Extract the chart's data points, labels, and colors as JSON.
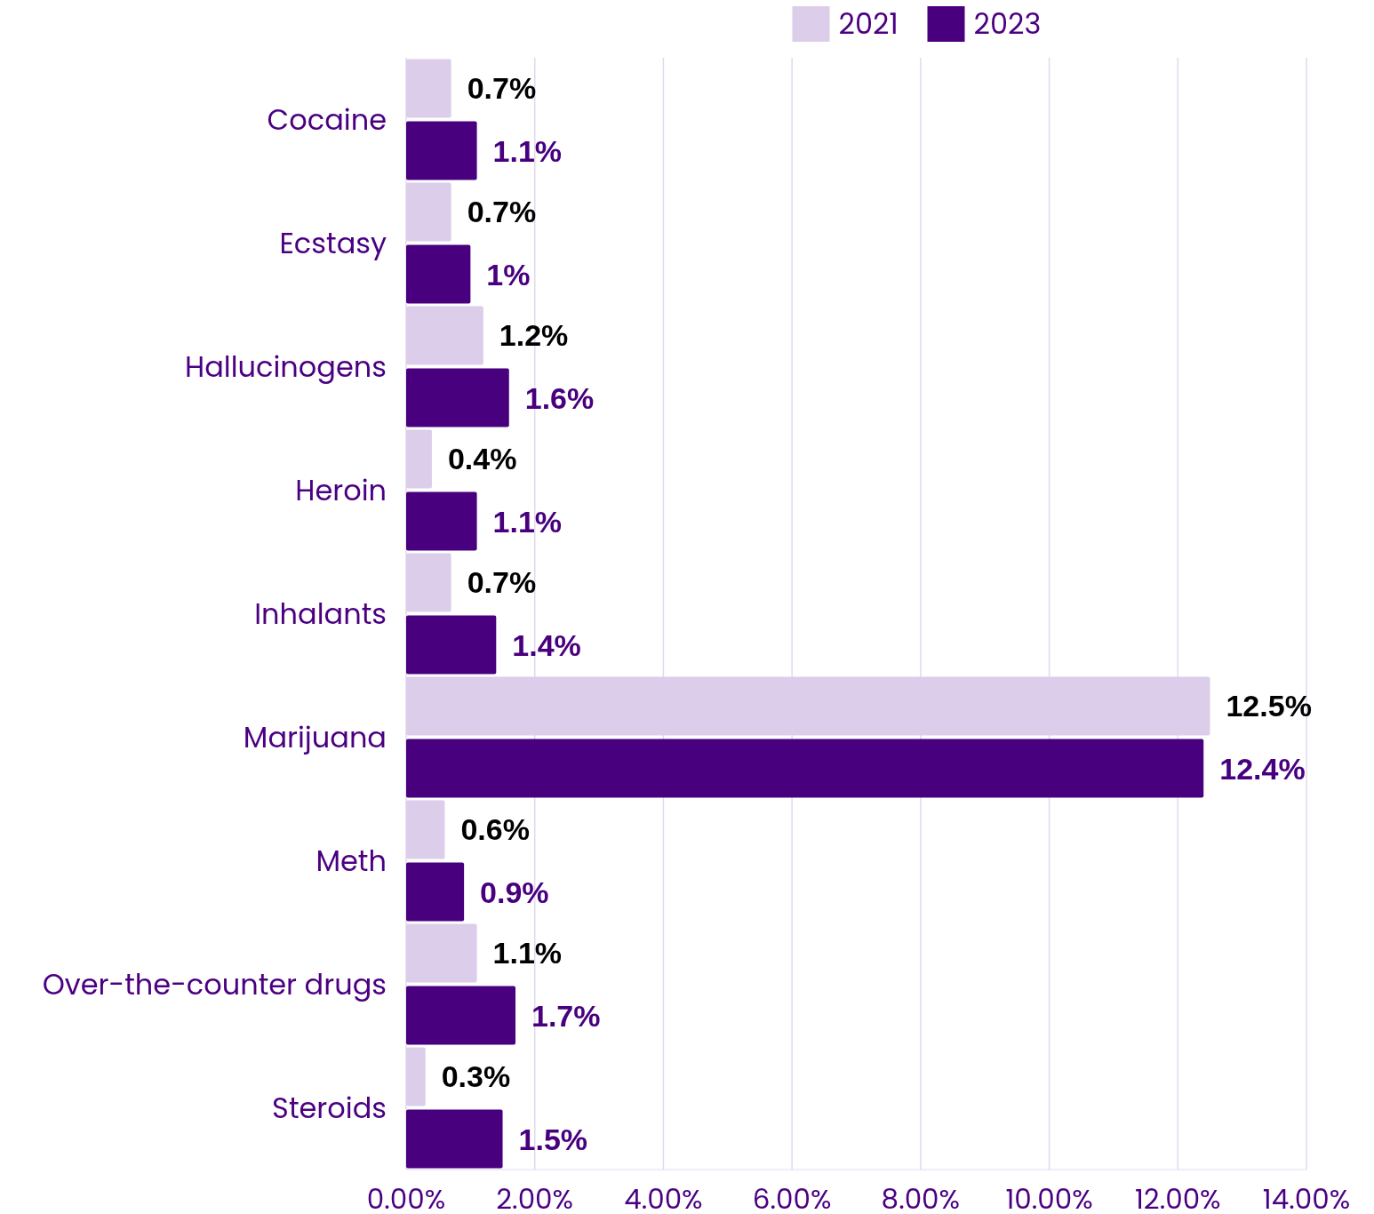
{
  "chart_data": {
    "type": "bar",
    "orientation": "horizontal",
    "categories": [
      "Cocaine",
      "Ecstasy",
      "Hallucinogens",
      "Heroin",
      "Inhalants",
      "Marijuana",
      "Meth",
      "Over-the-counter drugs",
      "Steroids"
    ],
    "series": [
      {
        "name": "2021",
        "color": "#dccdea",
        "values": [
          0.7,
          0.7,
          1.2,
          0.4,
          0.7,
          12.5,
          0.6,
          1.1,
          0.3
        ],
        "value_labels": [
          "0.7%",
          "0.7%",
          "1.2%",
          "0.4%",
          "0.7%",
          "12.5%",
          "0.6%",
          "1.1%",
          "0.3%"
        ]
      },
      {
        "name": "2023",
        "color": "#48007e",
        "values": [
          1.1,
          1,
          1.6,
          1.1,
          1.4,
          12.4,
          0.9,
          1.7,
          1.5
        ],
        "value_labels": [
          "1.1%",
          "1%",
          "1.6%",
          "1.1%",
          "1.4%",
          "12.4%",
          "0.9%",
          "1.7%",
          "1.5%"
        ]
      }
    ],
    "xlim": [
      0,
      14
    ],
    "xticks": [
      {
        "value": 0,
        "label": "0.00%"
      },
      {
        "value": 2,
        "label": "2.00%"
      },
      {
        "value": 4,
        "label": "4.00%"
      },
      {
        "value": 6,
        "label": "6.00%"
      },
      {
        "value": 8,
        "label": "8.00%"
      },
      {
        "value": 10,
        "label": "10.00%"
      },
      {
        "value": 12,
        "label": "12.00%"
      },
      {
        "value": 14,
        "label": "14.00%"
      }
    ],
    "grid": "x",
    "legend": "top"
  }
}
